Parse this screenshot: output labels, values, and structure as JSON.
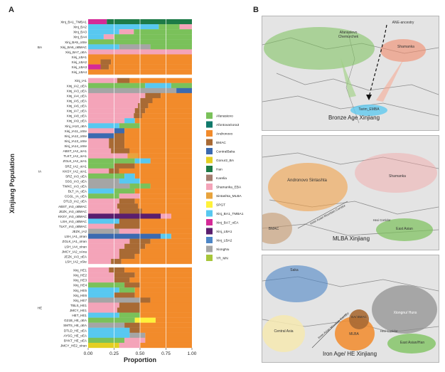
{
  "panel_a": "A",
  "panel_b": "B",
  "chart_data": {
    "type": "bar",
    "orientation": "horizontal",
    "stacked": true,
    "xlabel": "Proportion",
    "ylabel": "Xinjiang Population",
    "xlim": [
      0,
      1
    ],
    "xticks": [
      "0.00",
      "0.25",
      "0.50",
      "0.75",
      "1.00"
    ],
    "grid": true,
    "legend_position": "right",
    "components": [
      {
        "name": "Afanasievo",
        "color": "#7ac15a"
      },
      {
        "name": "AfontovaGora3",
        "color": "#10796b"
      },
      {
        "name": "Andronovo",
        "color": "#f28b2b"
      },
      {
        "name": "BMAC",
        "color": "#a86a34"
      },
      {
        "name": "CentralBaka",
        "color": "#3b6ab0"
      },
      {
        "name": "Gonur2_BA",
        "color": "#e4cf22"
      },
      {
        "name": "Han",
        "color": "#1d7a47"
      },
      {
        "name": "Karelia",
        "color": "#a37c6e"
      },
      {
        "name": "Shamanka_EBA",
        "color": "#f4a4b9"
      },
      {
        "name": "Sintashta_MLBA",
        "color": "#e8a33c"
      },
      {
        "name": "SPGT",
        "color": "#fff23a"
      },
      {
        "name": "Xinj_BA1_TMBA1",
        "color": "#58c8f0"
      },
      {
        "name": "Xinj_BA7_oEA",
        "color": "#d52a97"
      },
      {
        "name": "Xinj_LBA1",
        "color": "#5a1e6e"
      },
      {
        "name": "Xinj_LBA2",
        "color": "#4d86c6"
      },
      {
        "name": "XiongNu",
        "color": "#a5a5a5"
      },
      {
        "name": "YR_MN",
        "color": "#a7c63a"
      }
    ],
    "groups": [
      {
        "name": "BA",
        "samples": [
          {
            "label": "Xinj_BA1_TMBA1",
            "values": {
              "Xinj_BA7_oEA": 0.18,
              "Han": 0.82
            }
          },
          {
            "label": "Xinj_BA2",
            "values": {
              "Xinj_BA1_TMBA1": 0.68,
              "Afanasievo": 0.2,
              "Shamanka_EBA": 0.12
            }
          },
          {
            "label": "Xinj_BA3",
            "values": {
              "Xinj_BA1_TMBA1": 0.3,
              "Shamanka_EBA": 0.14,
              "Afanasievo": 0.56
            }
          },
          {
            "label": "Xinj_BA4",
            "values": {
              "Xinj_BA1_TMBA1": 0.15,
              "Shamanka_EBA": 0.1,
              "Afanasievo": 0.75
            }
          },
          {
            "label": "Xinj_BA5_oSte",
            "values": {
              "Afanasievo": 1.0
            }
          },
          {
            "label": "Xinj_BA6_oBMAC",
            "values": {
              "Xinj_BA1_TMBA1": 0.3,
              "XiongNu": 0.3,
              "Afanasievo": 0.4
            }
          },
          {
            "label": "Xinj_BA7_oEA",
            "values": {
              "Shamanka_EBA": 1.0
            }
          },
          {
            "label": "Xinj_LBA1",
            "values": {
              "Andronovo": 1.0
            }
          },
          {
            "label": "Xinj_LBA2",
            "values": {
              "Andronovo": 0.12,
              "BMAC": 0.1,
              "Andronovo ": 0.78
            }
          },
          {
            "label": "Xinj_LBA3",
            "values": {
              "Xinj_BA7_oEA": 0.12,
              "BMAC": 0.08,
              "Andronovo": 0.8
            }
          },
          {
            "label": "Xinj_LBA4",
            "values": {
              "Andronovo": 1.0
            }
          }
        ]
      },
      {
        "name": "IA",
        "samples": [
          {
            "label": "Xinj_IA1",
            "values": {
              "Shamanka_EBA": 0.28,
              "BMAC": 0.12,
              "Andronovo": 0.6
            }
          },
          {
            "label": "Xinj_IA2_oEA",
            "values": {
              "Afanasievo": 0.55,
              "Xinj_BA1_TMBA1": 0.25,
              "Afanasievo ": 0.2
            }
          },
          {
            "label": "Xinj_IA3_oEA",
            "values": {
              "XiongNu": 0.85,
              "CentralBaka": 0.15
            }
          },
          {
            "label": "Xinj_IA4_oEA",
            "values": {
              "Shamanka_EBA": 0.55,
              "BMAC": 0.15,
              "Andronovo": 0.3
            }
          },
          {
            "label": "Xinj_IA5_oEA",
            "values": {
              "Shamanka_EBA": 0.5,
              "BMAC": 0.12,
              "Andronovo": 0.38
            }
          },
          {
            "label": "Xinj_IA6_oEA",
            "values": {
              "Shamanka_EBA": 0.48,
              "BMAC": 0.1,
              "Andronovo": 0.42
            }
          },
          {
            "label": "Xinj_IA7_oEA",
            "values": {
              "Shamanka_EBA": 0.45,
              "BMAC": 0.1,
              "Andronovo": 0.45
            }
          },
          {
            "label": "Xinj_IA8_oEA",
            "values": {
              "Shamanka_EBA": 0.44,
              "BMAC": 0.08,
              "Andronovo": 0.48
            }
          },
          {
            "label": "Xinj_IA9_oEA",
            "values": {
              "Shamanka_EBA": 0.35,
              "Xinj_BA1_TMBA1": 0.1,
              "Andronovo": 0.55
            }
          },
          {
            "label": "Xinj_IA10_oEA",
            "values": {
              "Xinj_BA1_TMBA1": 0.3,
              "Afanasievo": 0.2,
              "Andronovo": 0.5
            }
          },
          {
            "label": "Xinj_IA11_oSte",
            "values": {
              "Shamanka_EBA": 0.25,
              "CentralBaka": 0.1,
              "Andronovo": 0.65
            }
          },
          {
            "label": "Xinj_IA12_oSte",
            "values": {
              "CentralBaka": 0.25,
              "BMAC": 0.1,
              "Andronovo": 0.65
            }
          },
          {
            "label": "Xinj_IA13_oSte",
            "values": {
              "Shamanka_EBA": 0.2,
              "BMAC": 0.15,
              "Andronovo": 0.65
            }
          },
          {
            "label": "Xinj_IA14_oSte",
            "values": {
              "Shamanka_EBA": 0.2,
              "BMAC": 0.15,
              "Andronovo": 0.65
            }
          },
          {
            "label": "ABST_IA2_oIA1",
            "values": {
              "Shamanka_EBA": 0.22,
              "BMAC": 0.18,
              "Andronovo": 0.6
            }
          },
          {
            "label": "TLKT_IA2_oIA1",
            "values": {
              "Shamanka_EBA": 0.38,
              "Sintashta_MLBA": 0.1,
              "Andronovo": 0.52
            }
          },
          {
            "label": "ZGLK_IA2_oIA1",
            "values": {
              "Afanasievo": 0.45,
              "Xinj_BA1_TMBA1": 0.15,
              "Andronovo": 0.4
            }
          },
          {
            "label": "SRZ_IA2_oIA1",
            "values": {
              "Afanasievo": 0.25,
              "BMAC": 0.2,
              "Andronovo": 0.55
            }
          },
          {
            "label": "KKSY_IA2_oIA1",
            "values": {
              "Shamanka_EBA": 0.2,
              "BMAC": 0.1,
              "Andronovo": 0.7
            }
          },
          {
            "label": "SRZ_IA3_oEA",
            "values": {
              "Afanasievo": 0.35,
              "Xinj_BA1_TMBA1": 0.1,
              "Andronovo": 0.55
            }
          },
          {
            "label": "SSG_IA3_oEA",
            "values": {
              "XiongNu": 0.3,
              "Xinj_BA1_TMBA1": 0.2,
              "Andronovo": 0.5
            }
          },
          {
            "label": "TWXC_IA3_oEA",
            "values": {
              "XiongNu": 0.4,
              "Afanasievo": 0.2,
              "Andronovo": 0.4
            }
          },
          {
            "label": "BLT_IA_oEA",
            "values": {
              "Xinj_BA1_TMBA1": 0.25,
              "Afanasievo": 0.2,
              "Andronovo": 0.55
            }
          },
          {
            "label": "CGGL_IA_oEA",
            "values": {
              "Afanasievo": 0.3,
              "Shamanka_EBA": 0.2,
              "Andronovo": 0.5
            }
          },
          {
            "label": "DTLD_IA2_oEA",
            "values": {
              "Shamanka_EBA": 0.3,
              "BMAC": 0.15,
              "Andronovo": 0.55
            }
          },
          {
            "label": "ABST_IA3_oBMAC",
            "values": {
              "Shamanka_EBA": 0.28,
              "BMAC": 0.2,
              "Andronovo": 0.52
            }
          },
          {
            "label": "JEZK_IA3_oBMAC",
            "values": {
              "Shamanka_EBA": 0.3,
              "BMAC": 0.22,
              "Andronovo": 0.48
            }
          },
          {
            "label": "KKSY_IA3_oBMAC",
            "values": {
              "Xinj_LBA1": 0.7,
              "Shamanka_EBA": 0.1,
              "Andronovo": 0.2
            }
          },
          {
            "label": "LSH_IA3_oBMAC",
            "values": {
              "Xinj_BA1_TMBA1": 0.3,
              "BMAC": 0.2,
              "Andronovo": 0.5
            }
          },
          {
            "label": "TLKT_IA3_oBMAC",
            "values": {
              "Shamanka_EBA": 0.25,
              "BMAC": 0.25,
              "Andronovo": 0.5
            }
          },
          {
            "label": "JEZK_IA2",
            "values": {
              "XiongNu": 0.3,
              "Shamanka_EBA": 0.2,
              "Andronovo": 0.5
            }
          },
          {
            "label": "LSH_IA1_oIran",
            "values": {
              "CentralBaka": 0.7,
              "Xinj_BA1_TMBA1": 0.1,
              "Andronovo": 0.2
            }
          },
          {
            "label": "ZGLK_IA1_oIran",
            "values": {
              "Shamanka_EBA": 0.4,
              "BMAC": 0.2,
              "Andronovo": 0.4
            }
          },
          {
            "label": "LSH_IA4_oIran",
            "values": {
              "Shamanka_EBA": 0.35,
              "BMAC": 0.2,
              "Andronovo": 0.45
            }
          },
          {
            "label": "JMCY_IA2_oAna",
            "values": {
              "Shamanka_EBA": 0.3,
              "BMAC": 0.2,
              "Andronovo": 0.5
            }
          },
          {
            "label": "JEZK_IA3_oEA",
            "values": {
              "Shamanka_EBA": 0.3,
              "BMAC": 0.15,
              "Andronovo": 0.55
            }
          },
          {
            "label": "LSH_IA2_oSte",
            "values": {
              "Shamanka_EBA": 0.22,
              "BMAC": 0.1,
              "Andronovo": 0.68
            }
          }
        ]
      },
      {
        "name": "HE",
        "samples": [
          {
            "label": "Xinj_HE1",
            "values": {
              "Shamanka_EBA": 0.2,
              "BMAC": 0.15,
              "Andronovo": 0.65
            }
          },
          {
            "label": "Xinj_HE2",
            "values": {
              "Shamanka_EBA": 0.25,
              "BMAC": 0.2,
              "Andronovo": 0.55
            }
          },
          {
            "label": "Xinj_HE3",
            "values": {
              "Shamanka_EBA": 0.25,
              "BMAC": 0.15,
              "Andronovo": 0.6
            }
          },
          {
            "label": "Xinj_HE4",
            "values": {
              "Afanasievo": 0.35,
              "BMAC": 0.15,
              "Andronovo": 0.5
            }
          },
          {
            "label": "Xinj_HE5",
            "values": {
              "Xinj_BA1_TMBA1": 0.3,
              "Afanasievo": 0.15,
              "Andronovo": 0.55
            }
          },
          {
            "label": "Xinj_HE6",
            "values": {
              "Xinj_BA1_TMBA1": 0.25,
              "BMAC": 0.2,
              "Andronovo": 0.55
            }
          },
          {
            "label": "Xinj_HE7",
            "values": {
              "XiongNu": 0.5,
              "BMAC": 0.1,
              "Andronovo": 0.4
            }
          },
          {
            "label": "TBLS_HE1",
            "values": {
              "Shamanka_EBA": 0.3,
              "BMAC": 0.2,
              "Andronovo": 0.5
            }
          },
          {
            "label": "JMCY_HE1",
            "values": {
              "Shamanka_EBA": 0.28,
              "BMAC": 0.22,
              "Andronovo": 0.5
            }
          },
          {
            "label": "HET_HE1",
            "values": {
              "Xinj_BA1_TMBA1": 0.3,
              "Afanasievo": 0.2,
              "Andronovo": 0.5
            }
          },
          {
            "label": "G21B_HE_oEA",
            "values": {
              "Afanasievo": 0.45,
              "SPGT": 0.2,
              "Andronovo": 0.35
            }
          },
          {
            "label": "SMTS_HE_oEA",
            "values": {
              "XiongNu": 0.35,
              "BMAC": 0.15,
              "Andronovo": 0.5
            }
          },
          {
            "label": "DTLD_HE_oEA",
            "values": {
              "Xinj_BA1_TMBA1": 0.4,
              "BMAC": 0.1,
              "Andronovo": 0.5
            }
          },
          {
            "label": "AYSG_HE_oEA",
            "values": {
              "Xinj_BA1_TMBA1": 0.4,
              "XiongNu": 0.15,
              "Andronovo": 0.45
            }
          },
          {
            "label": "BYKT_HE_oEA",
            "values": {
              "Afanasievo": 0.35,
              "Shamanka_EBA": 0.2,
              "Andronovo": 0.45
            }
          },
          {
            "label": "JMCY_HE2_oIran",
            "values": {
              "Gonur2_BA": 0.3,
              "Shamanka_EBA": 0.2,
              "Andronovo": 0.5
            }
          }
        ]
      }
    ]
  },
  "maps": [
    {
      "title": "Bronze Age Xinjiang",
      "labels": [
        "Afanasievo Chemurchek",
        "Shamanka",
        "ANE-ancestry",
        "Tarim_EMBA"
      ]
    },
    {
      "title": "MLBA Xinjiang",
      "labels": [
        "Andronovo Sintashta",
        "Shamanka",
        "BMAC",
        "Inner Asian Mountain Corridor",
        "Hexi Corridor",
        "East Asian"
      ]
    },
    {
      "title": "Iron Age/ HE Xinjiang",
      "labels": [
        "Saka",
        "Xiongnu/ Huns",
        "EA/ BMAC",
        "MLBA",
        "Central Asia",
        "Inner Asian Mountain Corridor",
        "Hexi Corridor",
        "East Asian/Han"
      ]
    }
  ]
}
